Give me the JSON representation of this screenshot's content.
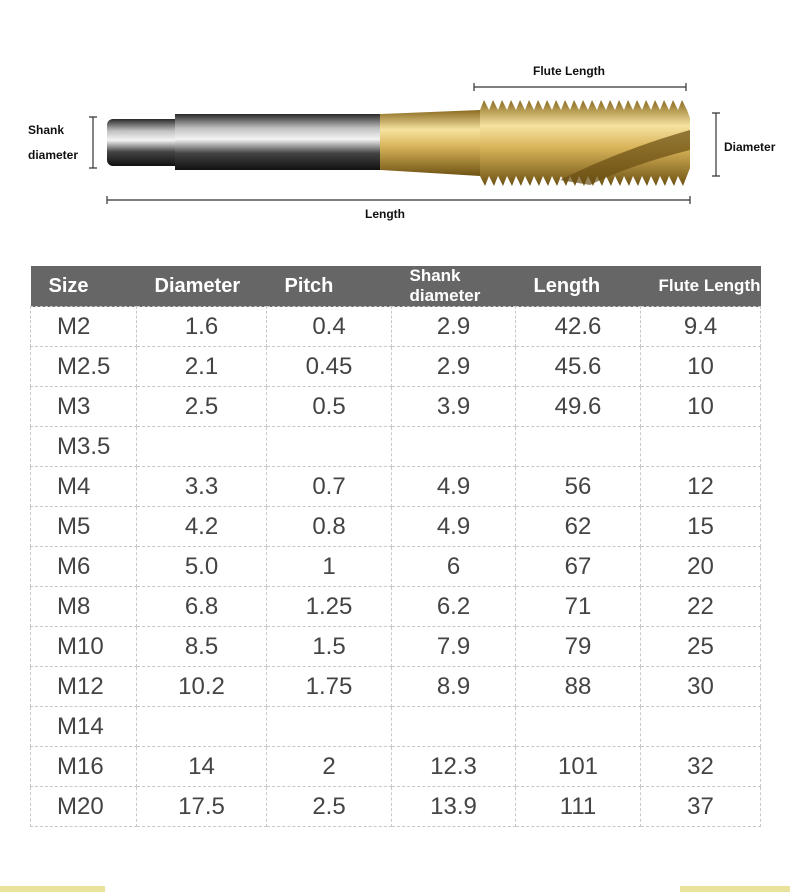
{
  "diagram": {
    "flute_length": "Flute Length",
    "shank_diameter": "Shank diameter",
    "diameter": "Diameter",
    "length": "Length"
  },
  "table": {
    "headers": [
      "Size",
      "Diameter",
      "Pitch",
      "Shank diameter",
      "Length",
      "Flute Length"
    ],
    "rows": [
      [
        "M2",
        "1.6",
        "0.4",
        "2.9",
        "42.6",
        "9.4"
      ],
      [
        "M2.5",
        "2.1",
        "0.45",
        "2.9",
        "45.6",
        "10"
      ],
      [
        "M3",
        "2.5",
        "0.5",
        "3.9",
        "49.6",
        "10"
      ],
      [
        "M3.5"
      ],
      [
        "M4",
        "3.3",
        "0.7",
        "4.9",
        "56",
        "12"
      ],
      [
        "M5",
        "4.2",
        "0.8",
        "4.9",
        "62",
        "15"
      ],
      [
        "M6",
        "5.0",
        "1",
        "6",
        "67",
        "20"
      ],
      [
        "M8",
        "6.8",
        "1.25",
        "6.2",
        "71",
        "22"
      ],
      [
        "M10",
        "8.5",
        "1.5",
        "7.9",
        "79",
        "25"
      ],
      [
        "M12",
        "10.2",
        "1.75",
        "8.9",
        "88",
        "30"
      ],
      [
        "M14"
      ],
      [
        "M16",
        "14",
        "2",
        "12.3",
        "101",
        "32"
      ],
      [
        "M20",
        "17.5",
        "2.5",
        "13.9",
        "111",
        "37"
      ]
    ]
  }
}
